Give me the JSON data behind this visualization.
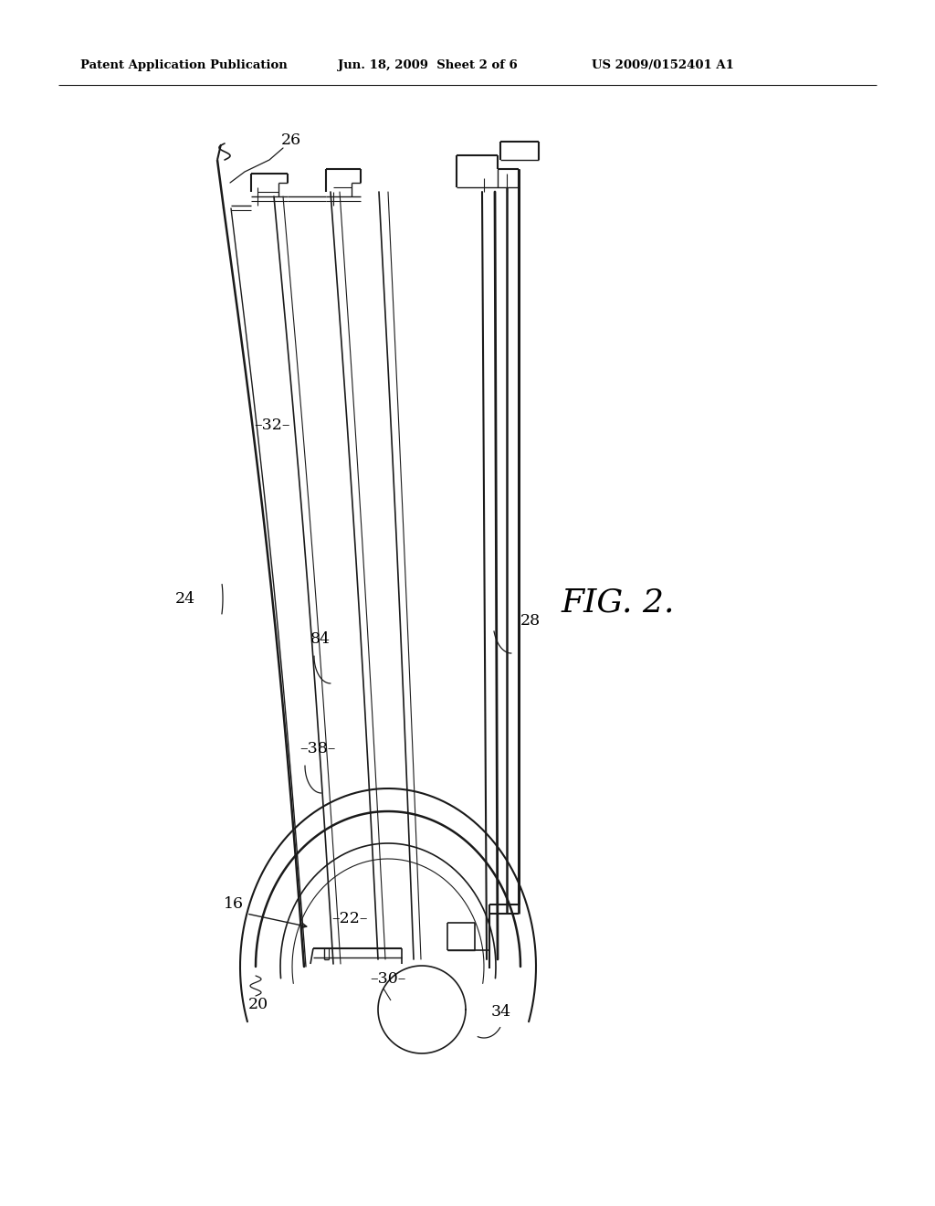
{
  "background_color": "#ffffff",
  "header_left": "Patent Application Publication",
  "header_center": "Jun. 18, 2009  Sheet 2 of 6",
  "header_right": "US 2009/0152401 A1",
  "fig_label": "FIG. 2.",
  "line_color": "#1a1a1a",
  "line_width": 1.3
}
